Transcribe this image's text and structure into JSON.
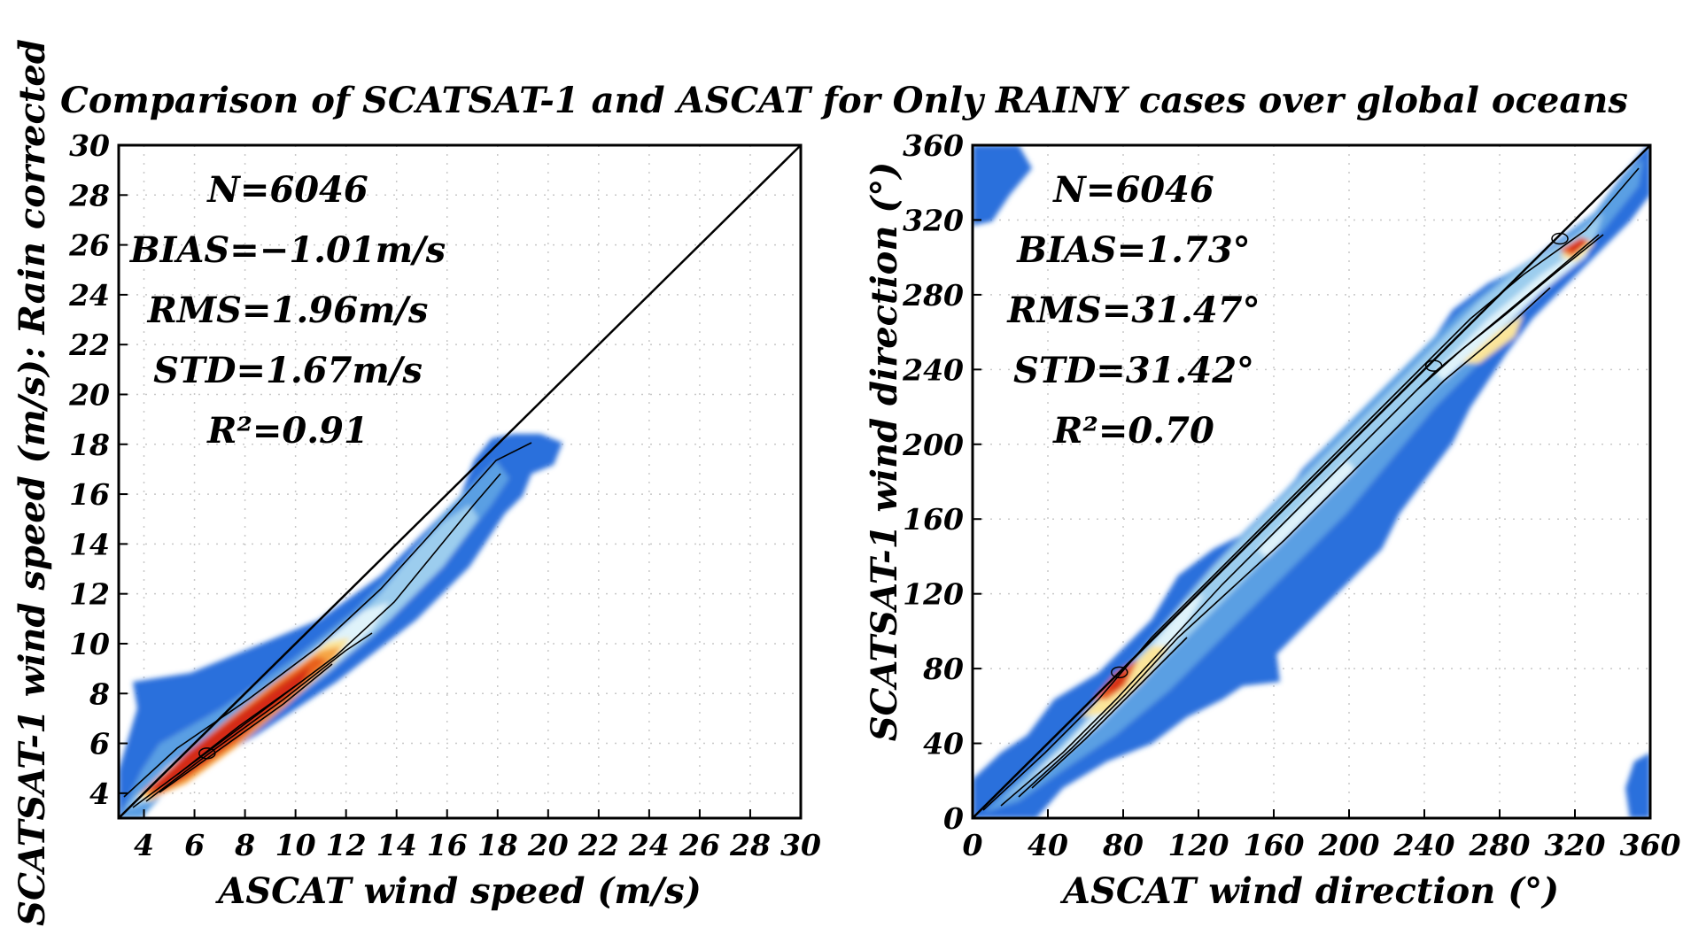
{
  "title": "Comparison of SCATSAT-1 and ASCAT for Only RAINY cases over global oceans",
  "shared_ylabel": "SCATSAT-1 wind speed (m/s): Rain corrected",
  "colors": {
    "lightest": "#dff3fa",
    "light_blue": "#9ccdee",
    "mid_blue": "#5a9fe3",
    "dark_blue": "#2a6fdc",
    "yellow": "#fbe59a",
    "orange": "#f5a544",
    "dark_orange": "#e8611f",
    "red": "#d42b12"
  },
  "chart_data": [
    {
      "type": "heatmap",
      "variant": "density contour",
      "xlabel": "ASCAT wind speed (m/s)",
      "ylabel": "SCATSAT-1 wind speed (m/s): Rain corrected",
      "xlim": [
        3,
        30
      ],
      "ylim": [
        3,
        30
      ],
      "xticks": [
        "4",
        "6",
        "8",
        "10",
        "12",
        "14",
        "16",
        "18",
        "20",
        "22",
        "24",
        "26",
        "28",
        "30"
      ],
      "yticks": [
        "4",
        "6",
        "8",
        "10",
        "12",
        "14",
        "16",
        "18",
        "20",
        "22",
        "24",
        "26",
        "28",
        "30"
      ],
      "grid": true,
      "reference_line": "1:1",
      "stats": [
        "N=6046",
        "BIAS=−1.01m/s",
        "RMS=1.96m/s",
        "STD=1.67m/s",
        "R²=0.91"
      ],
      "density_ridge": [
        [
          3.5,
          3.4
        ],
        [
          5,
          4.3
        ],
        [
          7,
          5.9
        ],
        [
          9,
          7.8
        ],
        [
          11,
          9.6
        ],
        [
          13,
          11
        ],
        [
          15,
          13.2
        ],
        [
          17,
          15.5
        ],
        [
          19,
          17.8
        ]
      ],
      "density_peak": [
        6.5,
        5.6
      ]
    },
    {
      "type": "heatmap",
      "variant": "density contour",
      "xlabel": "ASCAT wind direction (°)",
      "ylabel": "SCATSAT-1 wind direction (°)",
      "xlim": [
        0,
        360
      ],
      "ylim": [
        0,
        360
      ],
      "xticks": [
        "0",
        "40",
        "80",
        "120",
        "160",
        "200",
        "240",
        "280",
        "320",
        "360"
      ],
      "yticks": [
        "0",
        "40",
        "80",
        "120",
        "160",
        "200",
        "240",
        "280",
        "320",
        "360"
      ],
      "grid": true,
      "reference_line": "1:1",
      "stats": [
        "N=6046",
        "BIAS=1.73°",
        "RMS=31.47°",
        "STD=31.42°",
        "R²=0.70"
      ],
      "density_ridge": [
        [
          2,
          2
        ],
        [
          40,
          40
        ],
        [
          80,
          80
        ],
        [
          120,
          120
        ],
        [
          160,
          160
        ],
        [
          200,
          200
        ],
        [
          240,
          240
        ],
        [
          280,
          280
        ],
        [
          320,
          320
        ],
        [
          355,
          355
        ]
      ],
      "density_peaks": [
        [
          78,
          78
        ],
        [
          312,
          310
        ],
        [
          245,
          242
        ]
      ]
    }
  ]
}
